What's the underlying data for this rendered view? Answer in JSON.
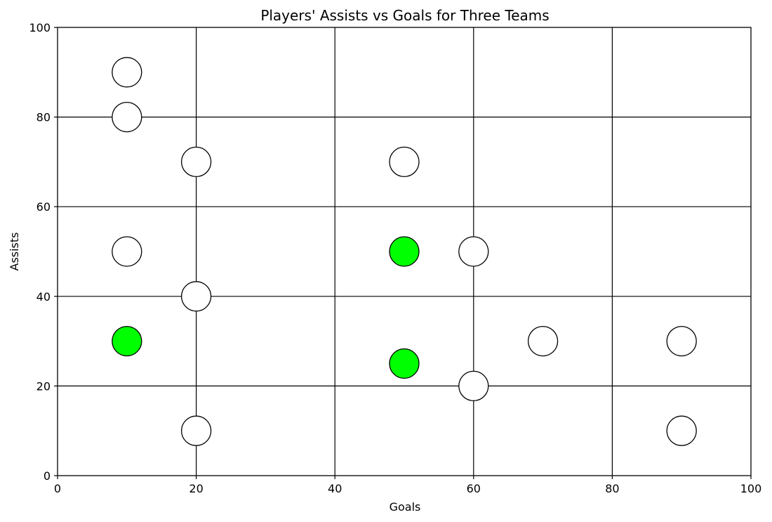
{
  "chart_data": {
    "type": "scatter",
    "title": "Players' Assists vs Goals for Three Teams",
    "xlabel": "Goals",
    "ylabel": "Assists",
    "xlim": [
      0,
      100
    ],
    "ylim": [
      0,
      100
    ],
    "xticks": [
      0,
      20,
      40,
      60,
      80,
      100
    ],
    "yticks": [
      0,
      20,
      40,
      60,
      80,
      100
    ],
    "grid": true,
    "colors": {
      "highlight": "#00ff00",
      "default": "#ffffff",
      "edge": "#000000"
    },
    "points": [
      {
        "x": 10,
        "y": 90,
        "highlight": false
      },
      {
        "x": 10,
        "y": 80,
        "highlight": false
      },
      {
        "x": 20,
        "y": 70,
        "highlight": false
      },
      {
        "x": 50,
        "y": 70,
        "highlight": false
      },
      {
        "x": 10,
        "y": 50,
        "highlight": false
      },
      {
        "x": 50,
        "y": 50,
        "highlight": true
      },
      {
        "x": 60,
        "y": 50,
        "highlight": false
      },
      {
        "x": 20,
        "y": 40,
        "highlight": false
      },
      {
        "x": 10,
        "y": 30,
        "highlight": true
      },
      {
        "x": 70,
        "y": 30,
        "highlight": false
      },
      {
        "x": 90,
        "y": 30,
        "highlight": false
      },
      {
        "x": 50,
        "y": 25,
        "highlight": true
      },
      {
        "x": 60,
        "y": 20,
        "highlight": false
      },
      {
        "x": 20,
        "y": 10,
        "highlight": false
      },
      {
        "x": 90,
        "y": 10,
        "highlight": false
      }
    ]
  }
}
